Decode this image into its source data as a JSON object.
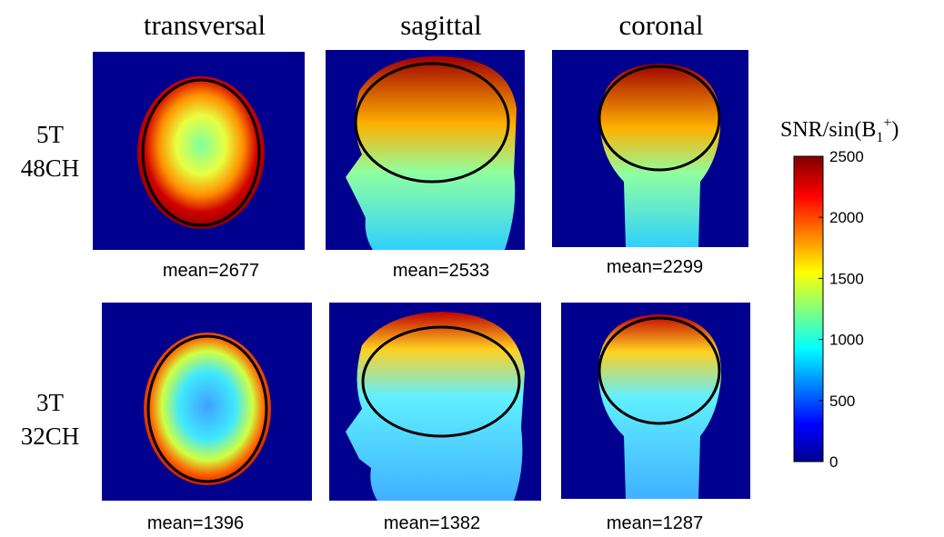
{
  "columns": [
    "transversal",
    "sagittal",
    "coronal"
  ],
  "rows": [
    {
      "label": [
        "5T",
        "48CH"
      ],
      "means": [
        "mean=2677",
        "mean=2533",
        "mean=2299"
      ]
    },
    {
      "label": [
        "3T",
        "32CH"
      ],
      "means": [
        "mean=1396",
        "mean=1382",
        "mean=1287"
      ]
    }
  ],
  "colorbar": {
    "label": {
      "main": "SNR/sin(B",
      "sub": "1",
      "sup": "+",
      "end": ")"
    },
    "lim": [
      0,
      2500
    ],
    "ticks": [
      0,
      500,
      1000,
      1500,
      2000,
      2500
    ]
  }
}
